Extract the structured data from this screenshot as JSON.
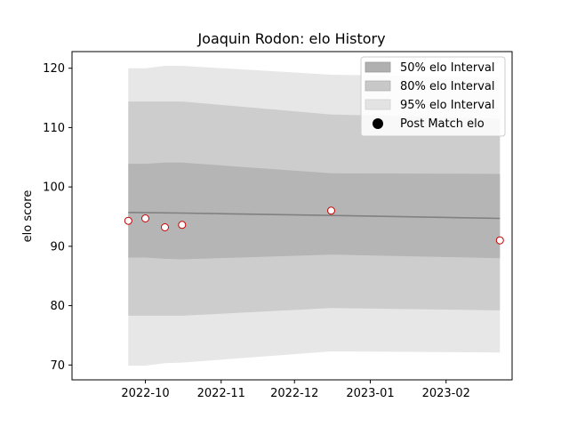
{
  "chart_data": {
    "type": "area",
    "title": "Joaquin Rodon: elo History",
    "xlabel": "",
    "ylabel": "elo score",
    "x_domain": [
      "2022-09-01",
      "2023-02-28"
    ],
    "ylim": [
      67.5,
      122.8
    ],
    "yticks": [
      70,
      80,
      90,
      100,
      110,
      120
    ],
    "xticks": [
      {
        "date": "2022-10-01",
        "label": "2022-10"
      },
      {
        "date": "2022-11-01",
        "label": "2022-11"
      },
      {
        "date": "2022-12-01",
        "label": "2022-12"
      },
      {
        "date": "2023-01-01",
        "label": "2023-01"
      },
      {
        "date": "2023-02-01",
        "label": "2023-02"
      }
    ],
    "grid": false,
    "legend_position": "top-right",
    "colors": {
      "band50": "#b0b0b0",
      "band80": "#c8c8c8",
      "band95": "#e3e3e3",
      "mean_line": "#808080",
      "marker_edge": "#cc0000",
      "marker_fill": "#ffffff",
      "legend_dot": "#000000"
    },
    "series": [
      {
        "name": "95% elo Interval",
        "kind": "band",
        "x": [
          "2022-09-24",
          "2022-10-01",
          "2022-10-09",
          "2022-10-16",
          "2022-12-16",
          "2023-02-23"
        ],
        "upper": [
          120.0,
          120.0,
          120.4,
          120.4,
          118.9,
          118.5
        ],
        "lower": [
          69.9,
          69.9,
          70.3,
          70.4,
          72.3,
          72.1
        ]
      },
      {
        "name": "80% elo Interval",
        "kind": "band",
        "x": [
          "2022-09-24",
          "2022-10-01",
          "2022-10-09",
          "2022-10-16",
          "2022-12-16",
          "2023-02-23"
        ],
        "upper": [
          114.4,
          114.4,
          114.4,
          114.4,
          112.2,
          111.5
        ],
        "lower": [
          78.3,
          78.3,
          78.3,
          78.3,
          79.6,
          79.2
        ]
      },
      {
        "name": "50% elo Interval",
        "kind": "band",
        "x": [
          "2022-09-24",
          "2022-10-01",
          "2022-10-09",
          "2022-10-16",
          "2022-12-16",
          "2023-02-23"
        ],
        "upper": [
          103.9,
          103.9,
          104.1,
          104.1,
          102.3,
          102.2
        ],
        "lower": [
          88.1,
          88.1,
          87.9,
          87.8,
          88.6,
          88.0
        ]
      },
      {
        "name": "mean elo",
        "kind": "line",
        "x": [
          "2022-09-24",
          "2022-10-16",
          "2022-12-16",
          "2023-02-23"
        ],
        "values": [
          95.7,
          95.6,
          95.2,
          94.7
        ]
      },
      {
        "name": "Post Match elo",
        "kind": "points",
        "x": [
          "2022-09-24",
          "2022-10-01",
          "2022-10-09",
          "2022-10-16",
          "2022-12-16",
          "2023-02-23"
        ],
        "values": [
          94.3,
          94.7,
          93.2,
          93.6,
          96.0,
          91.0
        ]
      }
    ],
    "legend": [
      "50% elo Interval",
      "80% elo Interval",
      "95% elo Interval",
      "Post Match elo"
    ]
  }
}
